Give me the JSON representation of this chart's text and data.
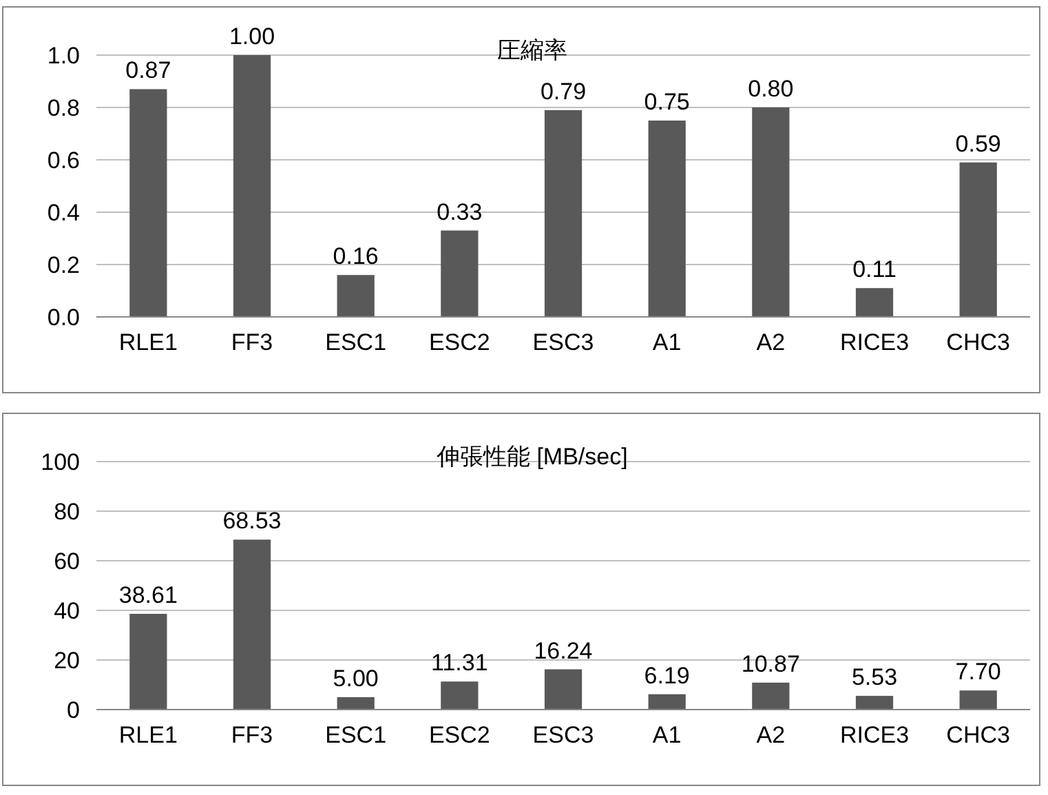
{
  "chart_data": [
    {
      "type": "bar",
      "title": "圧縮率",
      "categories": [
        "RLE1",
        "FF3",
        "ESC1",
        "ESC2",
        "ESC3",
        "A1",
        "A2",
        "RICE3",
        "CHC3"
      ],
      "values": [
        0.87,
        1.0,
        0.16,
        0.33,
        0.79,
        0.75,
        0.8,
        0.11,
        0.59
      ],
      "color": "#595959",
      "ylim": [
        0,
        1
      ],
      "yticks": [
        {
          "value": 0,
          "label": "0.0"
        },
        {
          "value": 0.2,
          "label": "0.2"
        },
        {
          "value": 0.4,
          "label": "0.4"
        },
        {
          "value": 0.6,
          "label": "0.6"
        },
        {
          "value": 0.8,
          "label": "0.8"
        },
        {
          "value": 1,
          "label": "1.0"
        }
      ],
      "grid": "y",
      "value_labels": [
        "0.87",
        "1.00",
        "0.16",
        "0.33",
        "0.79",
        "0.75",
        "0.80",
        "0.11",
        "0.59"
      ]
    },
    {
      "type": "bar",
      "title": "伸張性能 [MB/sec]",
      "categories": [
        "RLE1",
        "FF3",
        "ESC1",
        "ESC2",
        "ESC3",
        "A1",
        "A2",
        "RICE3",
        "CHC3"
      ],
      "values": [
        38.61,
        68.53,
        5.0,
        11.31,
        16.24,
        6.19,
        10.87,
        5.53,
        7.7
      ],
      "color": "#595959",
      "ylim": [
        0,
        100
      ],
      "yticks": [
        0,
        20,
        40,
        60,
        80,
        100
      ],
      "grid": "y",
      "value_labels": [
        "38.61",
        "68.53",
        "5.00",
        "11.31",
        "16.24",
        "6.19",
        "10.87",
        "5.53",
        "7.70"
      ]
    }
  ]
}
